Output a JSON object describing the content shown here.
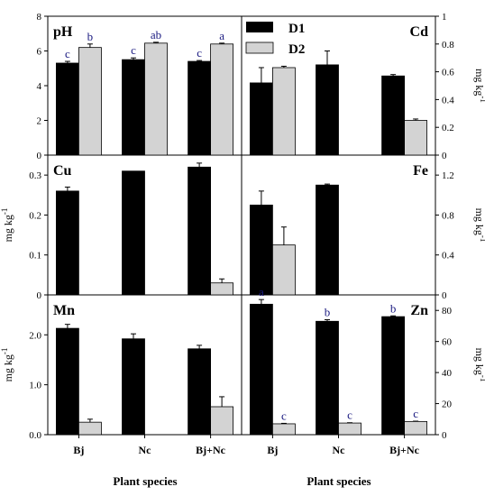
{
  "chart_data": {
    "type": "bar",
    "categories": [
      "Bj",
      "Nc",
      "Bj+Nc"
    ],
    "legend": [
      "D1",
      "D2"
    ],
    "series_colors": {
      "D1": "#000000",
      "D2": "#d3d3d3"
    },
    "xlabel": "Plant species",
    "panels": [
      {
        "id": "pH",
        "title": "pH",
        "unit": "",
        "ylim": [
          0,
          8
        ],
        "ticks": [
          0,
          2,
          4,
          6,
          8
        ],
        "axis_side": "left",
        "D1": [
          5.3,
          5.5,
          5.4
        ],
        "D1_err": [
          0.1,
          0.1,
          0.05
        ],
        "D2": [
          6.2,
          6.45,
          6.4
        ],
        "D2_err": [
          0.2,
          0.05,
          0.05
        ],
        "letters": [
          [
            "c",
            "b"
          ],
          [
            "c",
            "ab"
          ],
          [
            "c",
            "a"
          ]
        ]
      },
      {
        "id": "Cd",
        "title": "Cd",
        "unit": "mg kg",
        "ylim": [
          0,
          1.0
        ],
        "ticks": [
          0.0,
          0.2,
          0.4,
          0.6,
          0.8,
          1.0
        ],
        "axis_side": "right",
        "D1": [
          0.52,
          0.65,
          0.57
        ],
        "D1_err": [
          0.11,
          0.1,
          0.01
        ],
        "D2": [
          0.63,
          null,
          0.25
        ],
        "D2_err": [
          0.01,
          null,
          0.01
        ],
        "letters": null
      },
      {
        "id": "Cu",
        "title": "Cu",
        "unit": "mg kg",
        "ylim": [
          0,
          0.35
        ],
        "ticks": [
          0.0,
          0.1,
          0.2,
          0.3
        ],
        "axis_side": "left",
        "D1": [
          0.26,
          0.31,
          0.32
        ],
        "D1_err": [
          0.01,
          0.0,
          0.01
        ],
        "D2": [
          null,
          null,
          0.03
        ],
        "D2_err": [
          null,
          null,
          0.01
        ],
        "letters": null
      },
      {
        "id": "Fe",
        "title": "Fe",
        "unit": "mg kg",
        "ylim": [
          0,
          1.4
        ],
        "ticks": [
          0.0,
          0.4,
          0.8,
          1.2
        ],
        "axis_side": "right",
        "D1": [
          0.9,
          1.1,
          null
        ],
        "D1_err": [
          0.14,
          0.01,
          null
        ],
        "D2": [
          0.5,
          null,
          null
        ],
        "D2_err": [
          0.18,
          null,
          null
        ],
        "letters": null
      },
      {
        "id": "Mn",
        "title": "Mn",
        "unit": "mg kg",
        "ylim": [
          0,
          2.8
        ],
        "ticks": [
          0.0,
          1.0,
          2.0
        ],
        "tick_labels": [
          "0.0",
          "1.0",
          "2.0"
        ],
        "axis_side": "left",
        "D1": [
          2.13,
          1.92,
          1.72
        ],
        "D1_err": [
          0.08,
          0.1,
          0.07
        ],
        "D2": [
          0.25,
          null,
          0.56
        ],
        "D2_err": [
          0.06,
          null,
          0.2
        ],
        "letters": null
      },
      {
        "id": "Zn",
        "title": "Zn",
        "unit": "mg kg",
        "ylim": [
          0,
          90
        ],
        "ticks": [
          0,
          20,
          40,
          60,
          80
        ],
        "axis_side": "right",
        "D1": [
          84,
          73,
          76
        ],
        "D1_err": [
          3,
          1,
          0.5
        ],
        "D2": [
          7,
          7.5,
          8.5
        ],
        "D2_err": [
          0.3,
          0.2,
          0.2
        ],
        "letters": [
          [
            "a",
            "c"
          ],
          [
            "b",
            "c"
          ],
          [
            "b",
            "c"
          ]
        ]
      }
    ]
  }
}
